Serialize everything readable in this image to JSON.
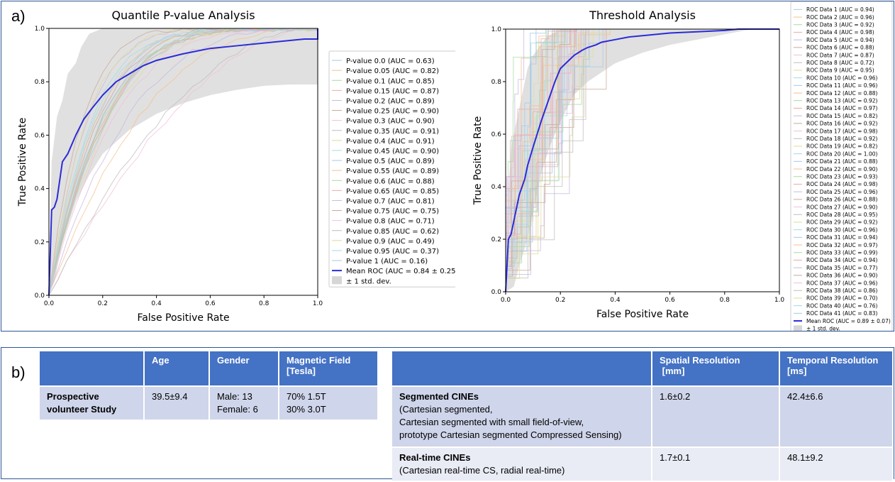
{
  "panel_a": {
    "label": "a)"
  },
  "panel_b": {
    "label": "b)"
  },
  "colors": {
    "mean": "#2b2bd8",
    "band": "#d6d6d6",
    "header": "#4472c4",
    "row_dark": "#cfd5ea",
    "row_light": "#e9ebf5"
  },
  "chart_data": [
    {
      "type": "line",
      "title": "Quantile P-value Analysis",
      "xlabel": "False Positive Rate",
      "ylabel": "True Positive Rate",
      "xlim": [
        0,
        1
      ],
      "ylim": [
        0,
        1
      ],
      "x_ticks": [
        "0.0",
        "0.2",
        "0.4",
        "0.6",
        "0.8",
        "1.0"
      ],
      "y_ticks": [
        "0.0",
        "0.2",
        "0.4",
        "0.6",
        "0.8",
        "1.0"
      ],
      "legend_position": "center-right outside",
      "legend": [
        "P-value  0.0 (AUC = 0.63)",
        "P-value  0.05 (AUC = 0.82)",
        "P-value  0.1 (AUC = 0.85)",
        "P-value  0.15 (AUC = 0.87)",
        "P-value  0.2 (AUC = 0.89)",
        "P-value  0.25 (AUC = 0.90)",
        "P-value  0.3 (AUC = 0.90)",
        "P-value  0.35 (AUC = 0.91)",
        "P-value  0.4 (AUC = 0.91)",
        "P-value  0.45 (AUC = 0.90)",
        "P-value  0.5 (AUC = 0.89)",
        "P-value  0.55 (AUC = 0.89)",
        "P-value  0.6 (AUC = 0.88)",
        "P-value  0.65 (AUC = 0.85)",
        "P-value  0.7 (AUC = 0.81)",
        "P-value  0.75 (AUC = 0.75)",
        "P-value  0.8 (AUC = 0.71)",
        "P-value  0.85 (AUC = 0.62)",
        "P-value  0.9 (AUC = 0.49)",
        "P-value  0.95 (AUC = 0.37)",
        "P-value  1 (AUC = 0.16)",
        "Mean ROC (AUC = 0.84 ± 0.25)",
        "± 1 std. dev."
      ],
      "mean_roc": {
        "x": [
          0,
          0.01,
          0.02,
          0.03,
          0.05,
          0.07,
          0.1,
          0.13,
          0.16,
          0.2,
          0.25,
          0.3,
          0.35,
          0.4,
          0.5,
          0.6,
          0.7,
          0.8,
          0.9,
          0.95,
          1.0,
          1.0
        ],
        "y": [
          0,
          0.32,
          0.33,
          0.36,
          0.5,
          0.53,
          0.6,
          0.66,
          0.7,
          0.75,
          0.8,
          0.83,
          0.86,
          0.88,
          0.905,
          0.925,
          0.935,
          0.945,
          0.955,
          0.96,
          0.96,
          1.0
        ]
      },
      "band_upper": {
        "x": [
          0,
          0.01,
          0.03,
          0.05,
          0.07,
          0.1,
          0.12,
          0.15,
          0.2,
          0.3,
          0.4,
          0.5,
          1.0
        ],
        "y": [
          0,
          0.5,
          0.67,
          0.73,
          0.83,
          0.87,
          0.93,
          0.98,
          1,
          1,
          1,
          1,
          1
        ]
      },
      "band_lower": {
        "x": [
          0,
          0.02,
          0.05,
          0.1,
          0.15,
          0.2,
          0.3,
          0.4,
          0.5,
          0.6,
          0.7,
          0.8,
          0.9,
          1.0
        ],
        "y": [
          0,
          0.05,
          0.2,
          0.35,
          0.45,
          0.53,
          0.62,
          0.68,
          0.72,
          0.75,
          0.77,
          0.785,
          0.79,
          0.79
        ]
      }
    },
    {
      "type": "line",
      "title": "Threshold Analysis",
      "xlabel": "False Positive Rate",
      "ylabel": "True Positive Rate",
      "xlim": [
        0,
        1
      ],
      "ylim": [
        0,
        1
      ],
      "x_ticks": [
        "0.0",
        "0.2",
        "0.4",
        "0.6",
        "0.8",
        "1.0"
      ],
      "y_ticks": [
        "0.0",
        "0.2",
        "0.4",
        "0.6",
        "0.8",
        "1.0"
      ],
      "legend_position": "right outside",
      "legend": [
        "ROC Data 1 (AUC = 0.94)",
        "ROC Data 2 (AUC = 0.96)",
        "ROC Data 3 (AUC = 0.92)",
        "ROC Data 4 (AUC = 0.98)",
        "ROC Data 5 (AUC = 0.94)",
        "ROC Data 6 (AUC = 0.88)",
        "ROC Data 7 (AUC = 0.87)",
        "ROC Data 8 (AUC = 0.72)",
        "ROC Data 9 (AUC = 0.95)",
        "ROC Data 10 (AUC = 0.96)",
        "ROC Data 11 (AUC = 0.96)",
        "ROC Data 12 (AUC = 0.88)",
        "ROC Data 13 (AUC = 0.92)",
        "ROC Data 14 (AUC = 0.97)",
        "ROC Data 15 (AUC = 0.82)",
        "ROC Data 16 (AUC = 0.92)",
        "ROC Data 17 (AUC = 0.98)",
        "ROC Data 18 (AUC = 0.92)",
        "ROC Data 19 (AUC = 0.82)",
        "ROC Data 20 (AUC = 1.00)",
        "ROC Data 21 (AUC = 0.88)",
        "ROC Data 22 (AUC = 0.90)",
        "ROC Data 23 (AUC = 0.93)",
        "ROC Data 24 (AUC = 0.98)",
        "ROC Data 25 (AUC = 0.96)",
        "ROC Data 26 (AUC = 0.88)",
        "ROC Data 27 (AUC = 0.90)",
        "ROC Data 28 (AUC = 0.95)",
        "ROC Data 29 (AUC = 0.92)",
        "ROC Data 30 (AUC = 0.96)",
        "ROC Data 31 (AUC = 0.94)",
        "ROC Data 32 (AUC = 0.97)",
        "ROC Data 33 (AUC = 0.99)",
        "ROC Data 34 (AUC = 0.94)",
        "ROC Data 35 (AUC = 0.77)",
        "ROC Data 36 (AUC = 0.90)",
        "ROC Data 37 (AUC = 0.96)",
        "ROC Data 38 (AUC = 0.86)",
        "ROC Data 39 (AUC = 0.70)",
        "ROC Data 40 (AUC = 0.76)",
        "ROC Data 41 (AUC = 0.83)",
        "Mean ROC (AUC = 0.89 ± 0.07)",
        "± 1 std. dev."
      ],
      "mean_roc": {
        "x": [
          0,
          0.01,
          0.02,
          0.03,
          0.04,
          0.05,
          0.07,
          0.08,
          0.1,
          0.13,
          0.16,
          0.18,
          0.2,
          0.23,
          0.25,
          0.28,
          0.3,
          0.33,
          0.35,
          0.4,
          0.45,
          0.5,
          0.6,
          0.7,
          0.8,
          0.85,
          0.9,
          1.0
        ],
        "y": [
          0,
          0.2,
          0.22,
          0.27,
          0.32,
          0.37,
          0.43,
          0.48,
          0.55,
          0.65,
          0.74,
          0.8,
          0.85,
          0.88,
          0.9,
          0.92,
          0.93,
          0.94,
          0.95,
          0.96,
          0.97,
          0.975,
          0.985,
          0.99,
          0.995,
          1.0,
          1.0,
          1.0
        ]
      },
      "band_upper": {
        "x": [
          0,
          0.02,
          0.05,
          0.08,
          0.1,
          0.15,
          0.2,
          0.3,
          0.4,
          0.5,
          1.0
        ],
        "y": [
          0.2,
          0.55,
          0.7,
          0.85,
          0.9,
          0.97,
          1,
          1,
          1,
          1,
          1
        ]
      },
      "band_lower": {
        "x": [
          0,
          0.03,
          0.05,
          0.08,
          0.1,
          0.13,
          0.16,
          0.2,
          0.25,
          0.3,
          0.4,
          0.5,
          0.6,
          0.7,
          0.8,
          0.9,
          1.0
        ],
        "y": [
          0,
          0.02,
          0.1,
          0.2,
          0.3,
          0.45,
          0.55,
          0.65,
          0.75,
          0.8,
          0.87,
          0.91,
          0.94,
          0.96,
          0.98,
          1,
          1
        ]
      }
    }
  ],
  "table_left": {
    "headers": [
      "",
      "Age",
      "Gender",
      "Magnetic Field\n[Tesla]"
    ],
    "row_label": "Prospective volunteer Study",
    "age": "39.5±9.4",
    "gender_1": "Male: 13",
    "gender_2": "Female: 6",
    "field_1": "70% 1.5T",
    "field_2": "30% 3.0T"
  },
  "table_right": {
    "headers": [
      "",
      "Spatial Resolution\n [mm]",
      "Temporal Resolution\n[ms]"
    ],
    "rows": [
      {
        "title": "Segmented CINEs",
        "desc_1": "(Cartesian segmented,",
        "desc_2": "Cartesian segmented with small field-of-view,",
        "desc_3": "prototype Cartesian segmented  Compressed Sensing)",
        "spatial": "1.6±0.2",
        "temporal": "42.4±6.6"
      },
      {
        "title": "Real-time CINEs",
        "desc_1": "(Cartesian real-time CS, radial real-time)",
        "spatial": "1.7±0.1",
        "temporal": "48.1±9.2"
      }
    ]
  }
}
